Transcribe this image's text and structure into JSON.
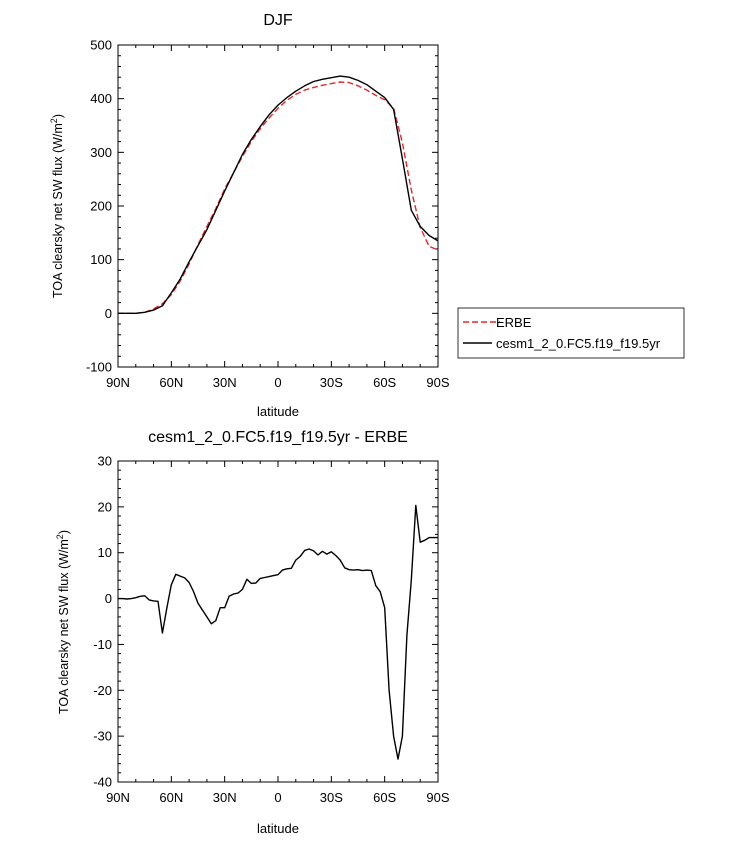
{
  "chart_data": [
    {
      "type": "line",
      "title": "DJF",
      "xlabel": "latitude",
      "ylabel": "TOA clearsky net SW flux (W/m2)",
      "xlim": [
        90,
        -90
      ],
      "ylim": [
        -100,
        500
      ],
      "x_ticks": [
        {
          "value": 90,
          "label": "90N"
        },
        {
          "value": 60,
          "label": "60N"
        },
        {
          "value": 30,
          "label": "30N"
        },
        {
          "value": 0,
          "label": "0"
        },
        {
          "value": -30,
          "label": "30S"
        },
        {
          "value": -60,
          "label": "60S"
        },
        {
          "value": -90,
          "label": "90S"
        }
      ],
      "y_ticks": [
        {
          "value": -100,
          "label": "-100"
        },
        {
          "value": 0,
          "label": "0"
        },
        {
          "value": 100,
          "label": "100"
        },
        {
          "value": 200,
          "label": "200"
        },
        {
          "value": 300,
          "label": "300"
        },
        {
          "value": 400,
          "label": "400"
        },
        {
          "value": 500,
          "label": "500"
        }
      ],
      "grid": false,
      "legend": "outside-right",
      "series": [
        {
          "name": "ERBE",
          "color": "#e8262b",
          "dash": "dashed",
          "x": [
            90,
            85,
            80,
            75,
            70,
            65,
            60,
            55,
            50,
            45,
            40,
            35,
            30,
            25,
            20,
            15,
            10,
            5,
            0,
            -5,
            -10,
            -15,
            -20,
            -25,
            -30,
            -35,
            -40,
            -45,
            -50,
            -55,
            -60,
            -65,
            -70,
            -75,
            -80,
            -85,
            -90
          ],
          "y": [
            0,
            0,
            0,
            2,
            8,
            18,
            35,
            60,
            92,
            128,
            162,
            195,
            232,
            262,
            292,
            320,
            344,
            364,
            382,
            397,
            408,
            416,
            421,
            425,
            428,
            431,
            430,
            424,
            416,
            406,
            398,
            382,
            318,
            230,
            160,
            125,
            118
          ]
        },
        {
          "name": "cesm1_2_0.FC5.f19_f19.5yr",
          "color": "#000000",
          "dash": "solid",
          "x": [
            90,
            85,
            80,
            75,
            70,
            65,
            60,
            55,
            50,
            45,
            40,
            35,
            30,
            25,
            20,
            15,
            10,
            5,
            0,
            -5,
            -10,
            -15,
            -20,
            -25,
            -30,
            -35,
            -40,
            -45,
            -50,
            -55,
            -60,
            -65,
            -70,
            -75,
            -80,
            -85,
            -90
          ],
          "y": [
            0,
            0,
            0,
            2,
            6,
            14,
            38,
            64,
            96,
            126,
            156,
            192,
            228,
            262,
            296,
            324,
            348,
            370,
            388,
            402,
            414,
            424,
            432,
            436,
            439,
            442,
            440,
            434,
            426,
            414,
            402,
            380,
            288,
            192,
            162,
            145,
            135
          ]
        }
      ]
    },
    {
      "type": "line",
      "title": "cesm1_2_0.FC5.f19_f19.5yr - ERBE",
      "xlabel": "latitude",
      "ylabel": "TOA clearsky net SW flux (W/m2)",
      "xlim": [
        90,
        -90
      ],
      "ylim": [
        -40,
        30
      ],
      "x_ticks": [
        {
          "value": 90,
          "label": "90N"
        },
        {
          "value": 60,
          "label": "60N"
        },
        {
          "value": 30,
          "label": "30N"
        },
        {
          "value": 0,
          "label": "0"
        },
        {
          "value": -30,
          "label": "30S"
        },
        {
          "value": -60,
          "label": "60S"
        },
        {
          "value": -90,
          "label": "90S"
        }
      ],
      "y_ticks": [
        {
          "value": -40,
          "label": "-40"
        },
        {
          "value": -30,
          "label": "-30"
        },
        {
          "value": -20,
          "label": "-20"
        },
        {
          "value": -10,
          "label": "-10"
        },
        {
          "value": 0,
          "label": "0"
        },
        {
          "value": 10,
          "label": "10"
        },
        {
          "value": 20,
          "label": "20"
        },
        {
          "value": 30,
          "label": "30"
        }
      ],
      "grid": false,
      "series": [
        {
          "color": "#000000",
          "dash": "solid",
          "x": [
            90,
            87.5,
            85,
            82.5,
            80,
            77.5,
            75,
            72.5,
            70,
            67.5,
            65,
            62.5,
            60,
            57.5,
            55,
            52.5,
            50,
            47.5,
            45,
            42.5,
            40,
            37.5,
            35,
            32.5,
            30,
            27.5,
            25,
            22.5,
            20,
            17.5,
            15,
            12.5,
            10,
            7.5,
            5,
            2.5,
            0,
            -2.5,
            -5,
            -7.5,
            -10,
            -12.5,
            -15,
            -17.5,
            -20,
            -22.5,
            -25,
            -27.5,
            -30,
            -32.5,
            -35,
            -37.5,
            -40,
            -42.5,
            -45,
            -47.5,
            -50,
            -52.5,
            -55,
            -57.5,
            -60,
            -62.5,
            -65,
            -67.5,
            -70,
            -72.5,
            -75,
            -77.5,
            -80,
            -82.5,
            -85,
            -87.5,
            -90
          ],
          "y": [
            0,
            0,
            -0.1,
            0,
            0.2,
            0.5,
            0.6,
            -0.3,
            -0.5,
            -0.6,
            -7.5,
            -2,
            3,
            5.3,
            4.9,
            4.5,
            3.5,
            1.5,
            -1,
            -2.5,
            -4,
            -5.5,
            -4.8,
            -2,
            -2,
            0.5,
            1,
            1.2,
            2,
            4.2,
            3.3,
            3.4,
            4.4,
            4.6,
            4.8,
            5,
            5.2,
            6.2,
            6.5,
            6.6,
            8.4,
            9.2,
            10.5,
            10.8,
            10.4,
            9.5,
            10.3,
            9.7,
            10.2,
            9.4,
            8.4,
            6.7,
            6.3,
            6.2,
            6.3,
            6.1,
            6.2,
            6.1,
            2.8,
            1.5,
            -2,
            -20,
            -30,
            -35,
            -30,
            -8,
            4,
            20.3,
            12.3,
            12.7,
            13.3,
            13.3,
            13.3
          ]
        }
      ]
    }
  ]
}
